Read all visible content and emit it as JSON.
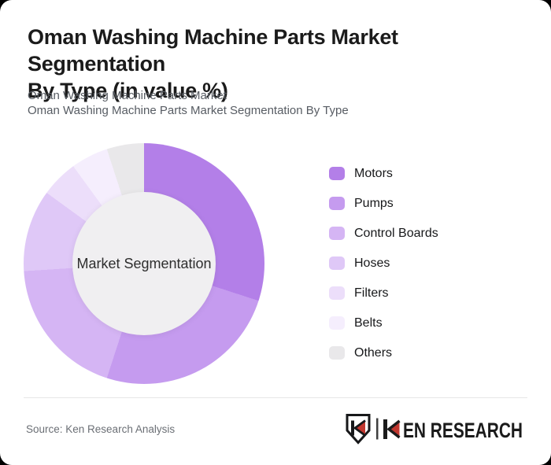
{
  "header": {
    "title": "Oman Washing Machine Parts Market Segmentation By Type (in value %)",
    "title_lines": [
      "Oman Washing Machine Parts Market Segmentation",
      "By Type (in value %)"
    ],
    "subtitle_line1": "Oman Washing Machine Parts Market",
    "subtitle_line2": "Oman Washing Machine Parts Market Segmentation By Type"
  },
  "chart_data": {
    "type": "pie",
    "variant": "donut",
    "title": "Oman Washing Machine Parts Market Segmentation By Type (in value %)",
    "units": "value %",
    "center_label": "Market Segmentation",
    "start_angle_deg": 0,
    "direction": "clockwise",
    "legend_position": "right",
    "hole_color": "#f0eff1",
    "series": [
      {
        "name": "Motors",
        "value": 30,
        "color": "#b37fe8"
      },
      {
        "name": "Pumps",
        "value": 25,
        "color": "#c59bef"
      },
      {
        "name": "Control Boards",
        "value": 19,
        "color": "#d5b5f4"
      },
      {
        "name": "Hoses",
        "value": 11,
        "color": "#dfc8f7"
      },
      {
        "name": "Filters",
        "value": 5,
        "color": "#ecdefa"
      },
      {
        "name": "Belts",
        "value": 5,
        "color": "#f5eefd"
      },
      {
        "name": "Others",
        "value": 5,
        "color": "#e9e8ea"
      }
    ]
  },
  "footer": {
    "source": "Source: Ken Research Analysis",
    "logo_text": "KEN RESEARCH",
    "logo_text_rest": "EN RESEARCH",
    "logo_red": "#c1372f"
  }
}
